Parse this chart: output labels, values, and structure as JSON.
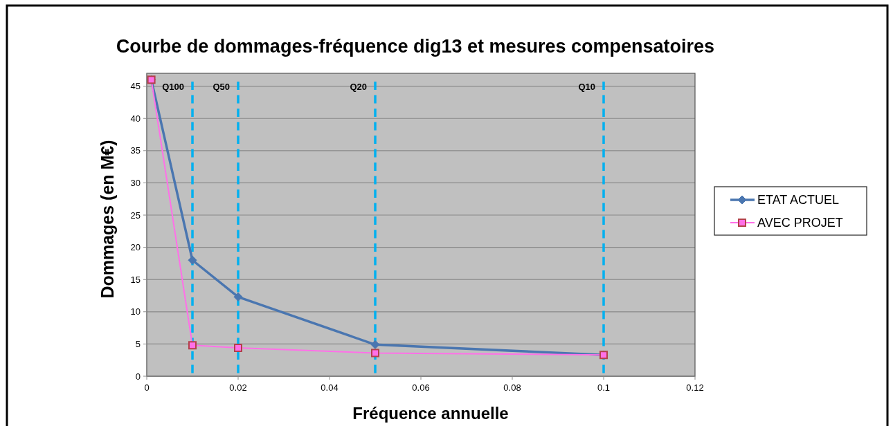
{
  "chart_data": {
    "type": "line",
    "title": "Courbe de dommages-fréquence dig13 et mesures compensatoires",
    "xlabel": "Fréquence annuelle",
    "ylabel": "Dommages (en M€)",
    "x": [
      0.001,
      0.01,
      0.02,
      0.05,
      0.1
    ],
    "series": [
      {
        "name": "ETAT ACTUEL",
        "color": "#4a76b0",
        "marker": "diamond",
        "values": [
          46,
          18,
          12.3,
          4.9,
          3.3
        ]
      },
      {
        "name": "AVEC PROJET",
        "color": "#ff70e8",
        "marker": "square",
        "values": [
          46,
          4.8,
          4.4,
          3.6,
          3.3
        ]
      }
    ],
    "xlim": [
      0,
      0.12
    ],
    "xticks": [
      0,
      0.02,
      0.04,
      0.06,
      0.08,
      0.1,
      0.12
    ],
    "ylim": [
      0,
      47
    ],
    "yticks": [
      0,
      5,
      10,
      15,
      20,
      25,
      30,
      35,
      40,
      45
    ],
    "grid": "y",
    "legend": "right",
    "line_style": "solid",
    "ref_lines": [
      {
        "axis": "x",
        "value": 0.01,
        "label": "Q100",
        "color": "#00b0f0",
        "line_style": "dashed"
      },
      {
        "axis": "x",
        "value": 0.02,
        "label": "Q50",
        "color": "#00b0f0",
        "line_style": "dashed"
      },
      {
        "axis": "x",
        "value": 0.05,
        "label": "Q20",
        "color": "#00b0f0",
        "line_style": "dashed"
      },
      {
        "axis": "x",
        "value": 0.1,
        "label": "Q10",
        "color": "#00b0f0",
        "line_style": "dashed"
      }
    ]
  }
}
